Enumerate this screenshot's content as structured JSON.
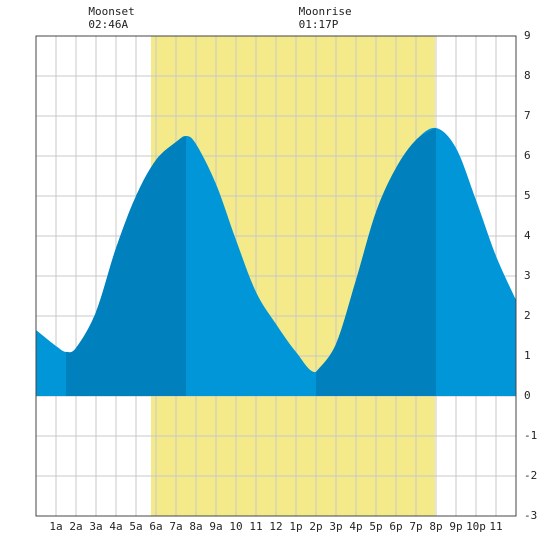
{
  "chart_data": {
    "type": "area",
    "x": [
      0,
      1,
      1.5,
      2,
      3,
      4,
      5,
      6,
      7,
      7.5,
      8,
      9,
      10,
      11,
      12,
      13,
      14,
      15,
      16,
      17,
      18,
      19,
      20,
      21,
      22,
      23,
      24
    ],
    "values": [
      1.65,
      1.25,
      1.1,
      1.2,
      2.1,
      3.7,
      5.0,
      5.9,
      6.35,
      6.5,
      6.3,
      5.3,
      3.9,
      2.6,
      1.8,
      1.1,
      0.6,
      1.3,
      2.9,
      4.6,
      5.7,
      6.4,
      6.7,
      6.2,
      4.9,
      3.5,
      2.4
    ],
    "color": "#0096d8",
    "rising_color": "#0080bc",
    "daylight": [
      5.75,
      19.95
    ],
    "daylight_color": "#f4ea8a",
    "annotations": [
      {
        "label": "Moonset",
        "time": "02:46A",
        "x": 2.77
      },
      {
        "label": "Moonrise",
        "time": "01:17P",
        "x": 13.28
      }
    ],
    "xlim": [
      0,
      24
    ],
    "xticks": [
      {
        "value": 1,
        "label": "1a"
      },
      {
        "value": 2,
        "label": "2a"
      },
      {
        "value": 3,
        "label": "3a"
      },
      {
        "value": 4,
        "label": "4a"
      },
      {
        "value": 5,
        "label": "5a"
      },
      {
        "value": 6,
        "label": "6a"
      },
      {
        "value": 7,
        "label": "7a"
      },
      {
        "value": 8,
        "label": "8a"
      },
      {
        "value": 9,
        "label": "9a"
      },
      10,
      11,
      12,
      {
        "value": 13,
        "label": "1p"
      },
      {
        "value": 14,
        "label": "2p"
      },
      {
        "value": 15,
        "label": "3p"
      },
      {
        "value": 16,
        "label": "4p"
      },
      {
        "value": 17,
        "label": "5p"
      },
      {
        "value": 18,
        "label": "6p"
      },
      {
        "value": 19,
        "label": "7p"
      },
      {
        "value": 20,
        "label": "8p"
      },
      {
        "value": 21,
        "label": "9p"
      },
      {
        "value": 22,
        "label": "10p"
      },
      {
        "value": 23,
        "label": "11"
      }
    ],
    "ylim": [
      -3,
      9
    ],
    "yticks": [
      9,
      8,
      7,
      6,
      5,
      4,
      3,
      2,
      1,
      0,
      -1,
      -2,
      -3
    ],
    "grid": true
  }
}
